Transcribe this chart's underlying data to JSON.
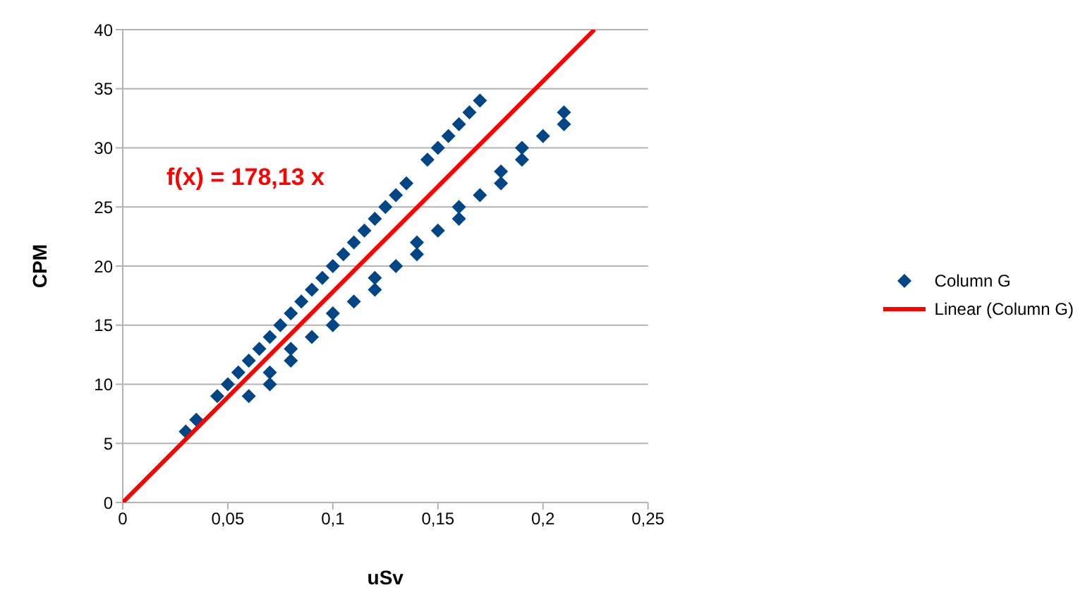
{
  "chart_data": {
    "type": "scatter",
    "xlabel": "uSv",
    "ylabel": "CPM",
    "xlim": [
      0,
      0.25
    ],
    "xticks": [
      0,
      {
        "value": 0.05,
        "label": "0,05"
      },
      {
        "value": 0.1,
        "label": "0,1"
      },
      {
        "value": 0.15,
        "label": "0,15"
      },
      {
        "value": 0.2,
        "label": "0,2"
      },
      {
        "value": 0.25,
        "label": "0,25"
      }
    ],
    "ylim": [
      0,
      40
    ],
    "yticks": [
      0,
      5,
      10,
      15,
      20,
      25,
      30,
      35,
      40
    ],
    "grid": "y",
    "legend": "right",
    "annotations": [
      "f(x) = 178,13 x"
    ],
    "series": [
      {
        "name": "Column G",
        "marker": "diamond",
        "color": "#004586",
        "x": [
          0.03,
          0.035,
          0.045,
          0.05,
          0.055,
          0.06,
          0.065,
          0.07,
          0.075,
          0.08,
          0.085,
          0.09,
          0.095,
          0.1,
          0.105,
          0.11,
          0.115,
          0.12,
          0.125,
          0.13,
          0.135,
          0.145,
          0.15,
          0.155,
          0.16,
          0.165,
          0.17,
          0.06,
          0.07,
          0.07,
          0.08,
          0.08,
          0.09,
          0.1,
          0.1,
          0.11,
          0.12,
          0.12,
          0.13,
          0.14,
          0.14,
          0.15,
          0.16,
          0.16,
          0.17,
          0.18,
          0.18,
          0.19,
          0.19,
          0.2,
          0.21,
          0.21
        ],
        "values": [
          6,
          7,
          9,
          10,
          11,
          12,
          13,
          14,
          15,
          16,
          17,
          18,
          19,
          20,
          21,
          22,
          23,
          24,
          25,
          26,
          27,
          29,
          30,
          31,
          32,
          33,
          34,
          9,
          11,
          10,
          13,
          12,
          14,
          16,
          15,
          17,
          19,
          18,
          20,
          22,
          21,
          23,
          25,
          24,
          26,
          28,
          27,
          30,
          29,
          31,
          33,
          32
        ]
      },
      {
        "name": "Linear (Column G)",
        "type": "line",
        "marker": "none",
        "line_style": "solid",
        "color": "#ff0000",
        "x": [
          0,
          0.2245
        ],
        "values": [
          0,
          40
        ]
      }
    ]
  }
}
